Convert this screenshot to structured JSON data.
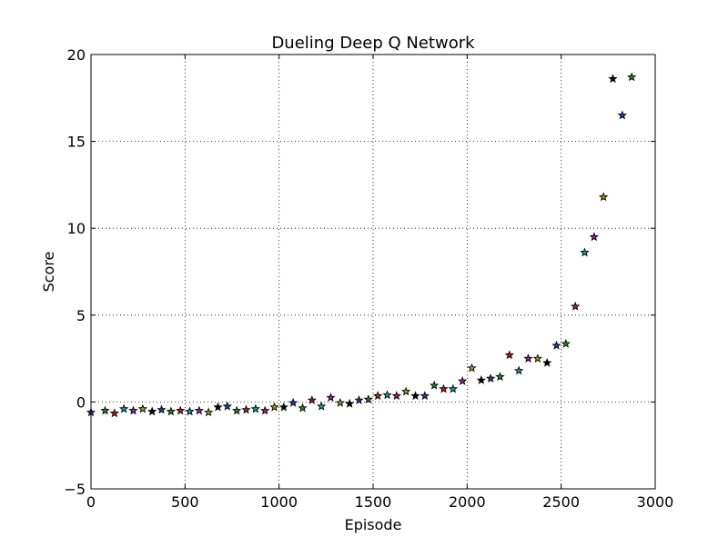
{
  "chart_data": {
    "type": "scatter",
    "title": "Dueling Deep Q Network",
    "xlabel": "Episode",
    "ylabel": "Score",
    "xlim": [
      0,
      3000
    ],
    "ylim": [
      -5,
      20
    ],
    "xticks": [
      0,
      500,
      1000,
      1500,
      2000,
      2500,
      3000
    ],
    "yticks": [
      -5,
      0,
      5,
      10,
      15,
      20
    ],
    "xtick_labels": [
      "0",
      "500",
      "1000",
      "1500",
      "2000",
      "2500",
      "3000"
    ],
    "ytick_labels": [
      "−5",
      "0",
      "5",
      "10",
      "15",
      "20"
    ],
    "grid": true,
    "marker": "star",
    "marker_colors": [
      "#1f3fbf",
      "#2a8a2a",
      "#c02020",
      "#1aa0a0",
      "#a020a0",
      "#a0a020",
      "#000000"
    ],
    "series": [
      {
        "x": [
          0,
          75,
          125,
          175,
          225,
          275,
          325,
          375,
          425,
          475,
          525,
          575,
          625,
          675,
          725,
          775,
          825,
          875,
          925,
          975,
          1025,
          1075,
          1125,
          1175,
          1225,
          1275,
          1325,
          1375,
          1425,
          1475,
          1525,
          1575,
          1625,
          1675,
          1725,
          1775,
          1825,
          1875,
          1925,
          1975,
          2025,
          2075,
          2125,
          2175,
          2225,
          2275,
          2325,
          2375,
          2425,
          2475,
          2525,
          2575,
          2625,
          2675,
          2725,
          2775,
          2825,
          2875
        ],
        "y": [
          -0.6,
          -0.5,
          -0.65,
          -0.4,
          -0.5,
          -0.4,
          -0.55,
          -0.45,
          -0.55,
          -0.5,
          -0.55,
          -0.5,
          -0.6,
          -0.3,
          -0.25,
          -0.5,
          -0.45,
          -0.4,
          -0.5,
          -0.3,
          -0.3,
          -0.05,
          -0.35,
          0.1,
          -0.25,
          0.25,
          -0.05,
          -0.1,
          0.1,
          0.15,
          0.35,
          0.4,
          0.35,
          0.6,
          0.35,
          0.35,
          0.95,
          0.75,
          0.75,
          1.2,
          1.95,
          1.25,
          1.35,
          1.45,
          2.7,
          1.8,
          2.5,
          2.5,
          2.25,
          3.25,
          3.35,
          5.5,
          8.6,
          9.5,
          11.8,
          18.6,
          16.5,
          18.7
        ]
      }
    ]
  }
}
